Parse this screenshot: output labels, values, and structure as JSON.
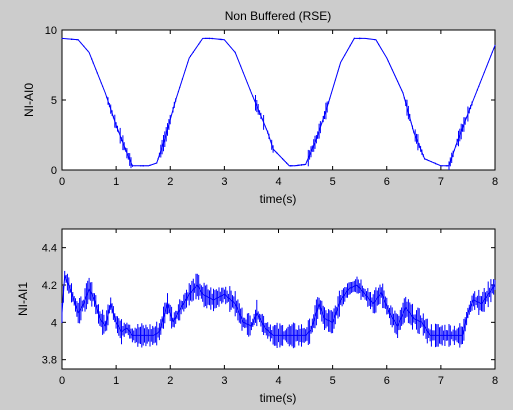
{
  "figure": {
    "background": "#cccccc",
    "line_color": "#0000ff"
  },
  "chart_data": [
    {
      "type": "line",
      "title": "Non Buffered (RSE)",
      "xlabel": "time(s)",
      "ylabel": "NI-AI0",
      "xlim": [
        0,
        8
      ],
      "ylim": [
        0,
        10
      ],
      "xticks": [
        0,
        1,
        2,
        3,
        4,
        5,
        6,
        7,
        8
      ],
      "xtick_labels": [
        "0",
        "1",
        "2",
        "3",
        "4",
        "5",
        "6",
        "7",
        "8"
      ],
      "yticks": [
        0,
        5,
        10
      ],
      "ytick_labels": [
        "0",
        "5",
        "10"
      ],
      "grid": false,
      "series": [
        {
          "color": "#0000ff",
          "x": [
            0,
            0.3,
            0.5,
            0.8,
            1.0,
            1.2,
            1.3,
            1.6,
            1.75,
            1.9,
            2.1,
            2.35,
            2.6,
            2.75,
            3.0,
            3.2,
            3.5,
            3.8,
            3.9,
            4.2,
            4.3,
            4.5,
            4.7,
            4.9,
            5.15,
            5.4,
            5.6,
            5.8,
            6.0,
            6.3,
            6.5,
            6.7,
            7.0,
            7.15,
            7.3,
            7.6,
            8.0
          ],
          "y": [
            9.4,
            9.3,
            8.4,
            5.5,
            3.2,
            1.2,
            0.3,
            0.3,
            0.5,
            2.2,
            5.0,
            8.0,
            9.4,
            9.4,
            9.3,
            8.4,
            5.5,
            2.7,
            1.5,
            0.3,
            0.3,
            0.4,
            2.2,
            4.5,
            7.7,
            9.4,
            9.4,
            9.3,
            8.0,
            5.5,
            2.7,
            0.8,
            0.3,
            0.3,
            2.0,
            5.0,
            8.9
          ]
        }
      ]
    },
    {
      "type": "line",
      "title": "",
      "xlabel": "time(s)",
      "ylabel": "NI-AI1",
      "xlim": [
        0,
        8
      ],
      "ylim": [
        3.75,
        4.5
      ],
      "xticks": [
        0,
        1,
        2,
        3,
        4,
        5,
        6,
        7,
        8
      ],
      "xtick_labels": [
        "0",
        "1",
        "2",
        "3",
        "4",
        "5",
        "6",
        "7",
        "8"
      ],
      "yticks": [
        3.8,
        4.0,
        4.2,
        4.4
      ],
      "ytick_labels": [
        "3.8",
        "4",
        "4.2",
        "4.4"
      ],
      "grid": false,
      "series": [
        {
          "color": "#0000ff",
          "x": [
            0,
            0.05,
            0.15,
            0.3,
            0.4,
            0.5,
            0.6,
            0.7,
            0.8,
            0.9,
            1.0,
            1.1,
            1.2,
            1.3,
            1.5,
            1.7,
            1.8,
            1.95,
            2.05,
            2.2,
            2.35,
            2.5,
            2.6,
            2.8,
            3.0,
            3.2,
            3.35,
            3.5,
            3.6,
            3.75,
            3.9,
            4.1,
            4.3,
            4.5,
            4.6,
            4.75,
            4.85,
            5.0,
            5.15,
            5.3,
            5.45,
            5.6,
            5.75,
            5.9,
            6.05,
            6.2,
            6.35,
            6.5,
            6.65,
            6.8,
            6.95,
            7.1,
            7.25,
            7.4,
            7.5,
            7.6,
            7.75,
            7.9,
            8.0
          ],
          "y": [
            4.05,
            4.25,
            4.18,
            4.05,
            4.1,
            4.18,
            4.12,
            4.02,
            3.98,
            4.1,
            4.0,
            3.95,
            3.97,
            3.93,
            3.93,
            3.93,
            3.95,
            4.1,
            4.0,
            4.08,
            4.15,
            4.2,
            4.15,
            4.12,
            4.15,
            4.1,
            4.0,
            3.98,
            4.05,
            3.97,
            3.93,
            3.93,
            3.93,
            3.93,
            3.96,
            4.1,
            4.02,
            4.0,
            4.12,
            4.18,
            4.2,
            4.15,
            4.1,
            4.16,
            4.05,
            3.98,
            4.08,
            4.02,
            4.0,
            3.93,
            3.93,
            3.93,
            3.93,
            3.93,
            4.05,
            4.12,
            4.1,
            4.16,
            4.2
          ]
        }
      ]
    }
  ]
}
